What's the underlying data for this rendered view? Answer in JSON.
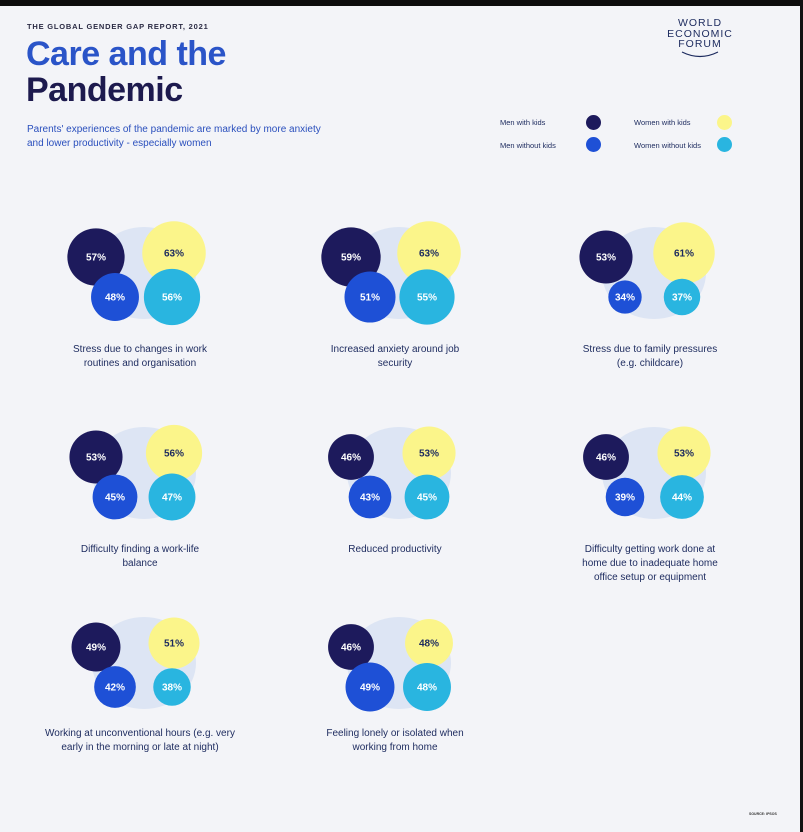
{
  "header": {
    "report_label": "THE GLOBAL GENDER GAP REPORT, 2021",
    "title_line1": "Care and the",
    "title_line2": "Pandemic",
    "subtitle": "Parents' experiences of the pandemic are marked by more anxiety and lower productivity - especially women",
    "logo_lines": [
      "WORLD",
      "ECONOMIC",
      "FORUM"
    ]
  },
  "legend": [
    {
      "label": "Men with kids",
      "color": "#1d1a5c"
    },
    {
      "label": "Men without kids",
      "color": "#1e50d6"
    },
    {
      "label": "Women with kids",
      "color": "#fbf58a"
    },
    {
      "label": "Women without kids",
      "color": "#29b5e0"
    }
  ],
  "colors": {
    "background": "#f3f4f8",
    "panel_blob": "#dde5f4",
    "text_dark": "#1c2a5e",
    "title_blue": "#2a54c8",
    "title_navy": "#1d1a4e"
  },
  "chart_data": {
    "type": "bubble",
    "series": [
      "Men with kids",
      "Men without kids",
      "Women with kids",
      "Women without kids"
    ],
    "unit": "%",
    "panels": [
      {
        "label": "Stress due to changes in work routines and organisation",
        "values": {
          "men_with_kids": 57,
          "men_without_kids": 48,
          "women_with_kids": 63,
          "women_without_kids": 56
        }
      },
      {
        "label": "Increased anxiety around job security",
        "values": {
          "men_with_kids": 59,
          "men_without_kids": 51,
          "women_with_kids": 63,
          "women_without_kids": 55
        }
      },
      {
        "label": "Stress due to family pressures (e.g. childcare)",
        "values": {
          "men_with_kids": 53,
          "men_without_kids": 34,
          "women_with_kids": 61,
          "women_without_kids": 37
        }
      },
      {
        "label": "Difficulty finding a work-life balance",
        "values": {
          "men_with_kids": 53,
          "men_without_kids": 45,
          "women_with_kids": 56,
          "women_without_kids": 47
        }
      },
      {
        "label": "Reduced productivity",
        "values": {
          "men_with_kids": 46,
          "men_without_kids": 43,
          "women_with_kids": 53,
          "women_without_kids": 45
        }
      },
      {
        "label": "Difficulty getting work done at home due to inadequate home office setup or equipment",
        "values": {
          "men_with_kids": 46,
          "men_without_kids": 39,
          "women_with_kids": 53,
          "women_without_kids": 44
        }
      },
      {
        "label": "Working at unconventional hours (e.g. very early in the morning or late at night)",
        "values": {
          "men_with_kids": 49,
          "men_without_kids": 42,
          "women_with_kids": 51,
          "women_without_kids": 38
        }
      },
      {
        "label": "Feeling lonely or isolated when working from home",
        "values": {
          "men_with_kids": 46,
          "men_without_kids": 49,
          "women_with_kids": 48,
          "women_without_kids": 48
        }
      }
    ]
  },
  "footer": {
    "source": "SOURCE: IPSOS"
  }
}
